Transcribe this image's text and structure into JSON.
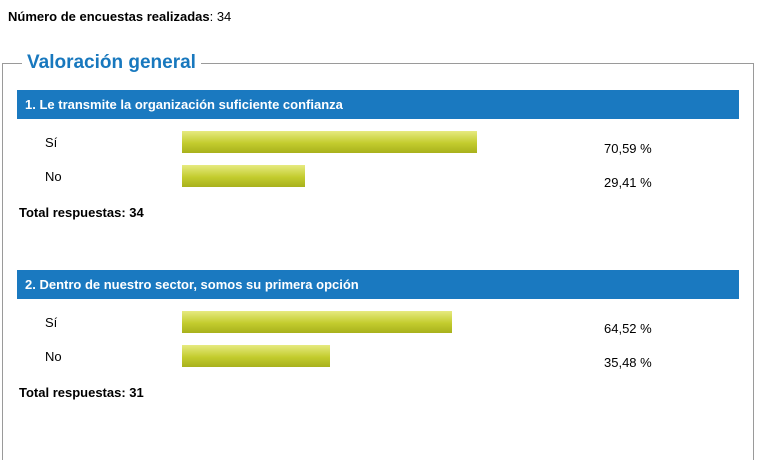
{
  "header": {
    "label": "Número de encuestas realizadas",
    "suffix": ": 34"
  },
  "section": {
    "title": "Valoración general"
  },
  "questions": [
    {
      "title": "1. Le transmite la organización suficiente confianza",
      "rows": [
        {
          "label": "Sí",
          "pct": 70.59,
          "value_label": "70,59 %"
        },
        {
          "label": "No",
          "pct": 29.41,
          "value_label": "29,41 %"
        }
      ],
      "total_label": "Total respuestas: 34"
    },
    {
      "title": "2. Dentro de nuestro sector, somos su primera opción",
      "rows": [
        {
          "label": "Sí",
          "pct": 64.52,
          "value_label": "64,52 %"
        },
        {
          "label": "No",
          "pct": 35.48,
          "value_label": "35,48 %"
        }
      ],
      "total_label": "Total respuestas: 31"
    }
  ],
  "colors": {
    "header_blue": "#1a79c0",
    "legend_blue": "#1878be",
    "bar_gradient_top": "#e6ea80",
    "bar_gradient_mid": "#c3cc2e",
    "bar_gradient_bottom": "#a8b11c",
    "fieldset_border": "#9a9a9a"
  },
  "chart_data": [
    {
      "type": "bar",
      "title": "1. Le transmite la organización suficiente confianza",
      "categories": [
        "Sí",
        "No"
      ],
      "values": [
        70.59,
        29.41
      ],
      "value_labels": [
        "70,59 %",
        "29,41 %"
      ],
      "xlabel": "",
      "ylabel": "",
      "xlim": [
        0,
        100
      ],
      "orientation": "horizontal",
      "grid": false,
      "legend": false,
      "total_responses": 34
    },
    {
      "type": "bar",
      "title": "2. Dentro de nuestro sector, somos su primera opción",
      "categories": [
        "Sí",
        "No"
      ],
      "values": [
        64.52,
        35.48
      ],
      "value_labels": [
        "64,52 %",
        "35,48 %"
      ],
      "xlabel": "",
      "ylabel": "",
      "xlim": [
        0,
        100
      ],
      "orientation": "horizontal",
      "grid": false,
      "legend": false,
      "total_responses": 31
    }
  ]
}
